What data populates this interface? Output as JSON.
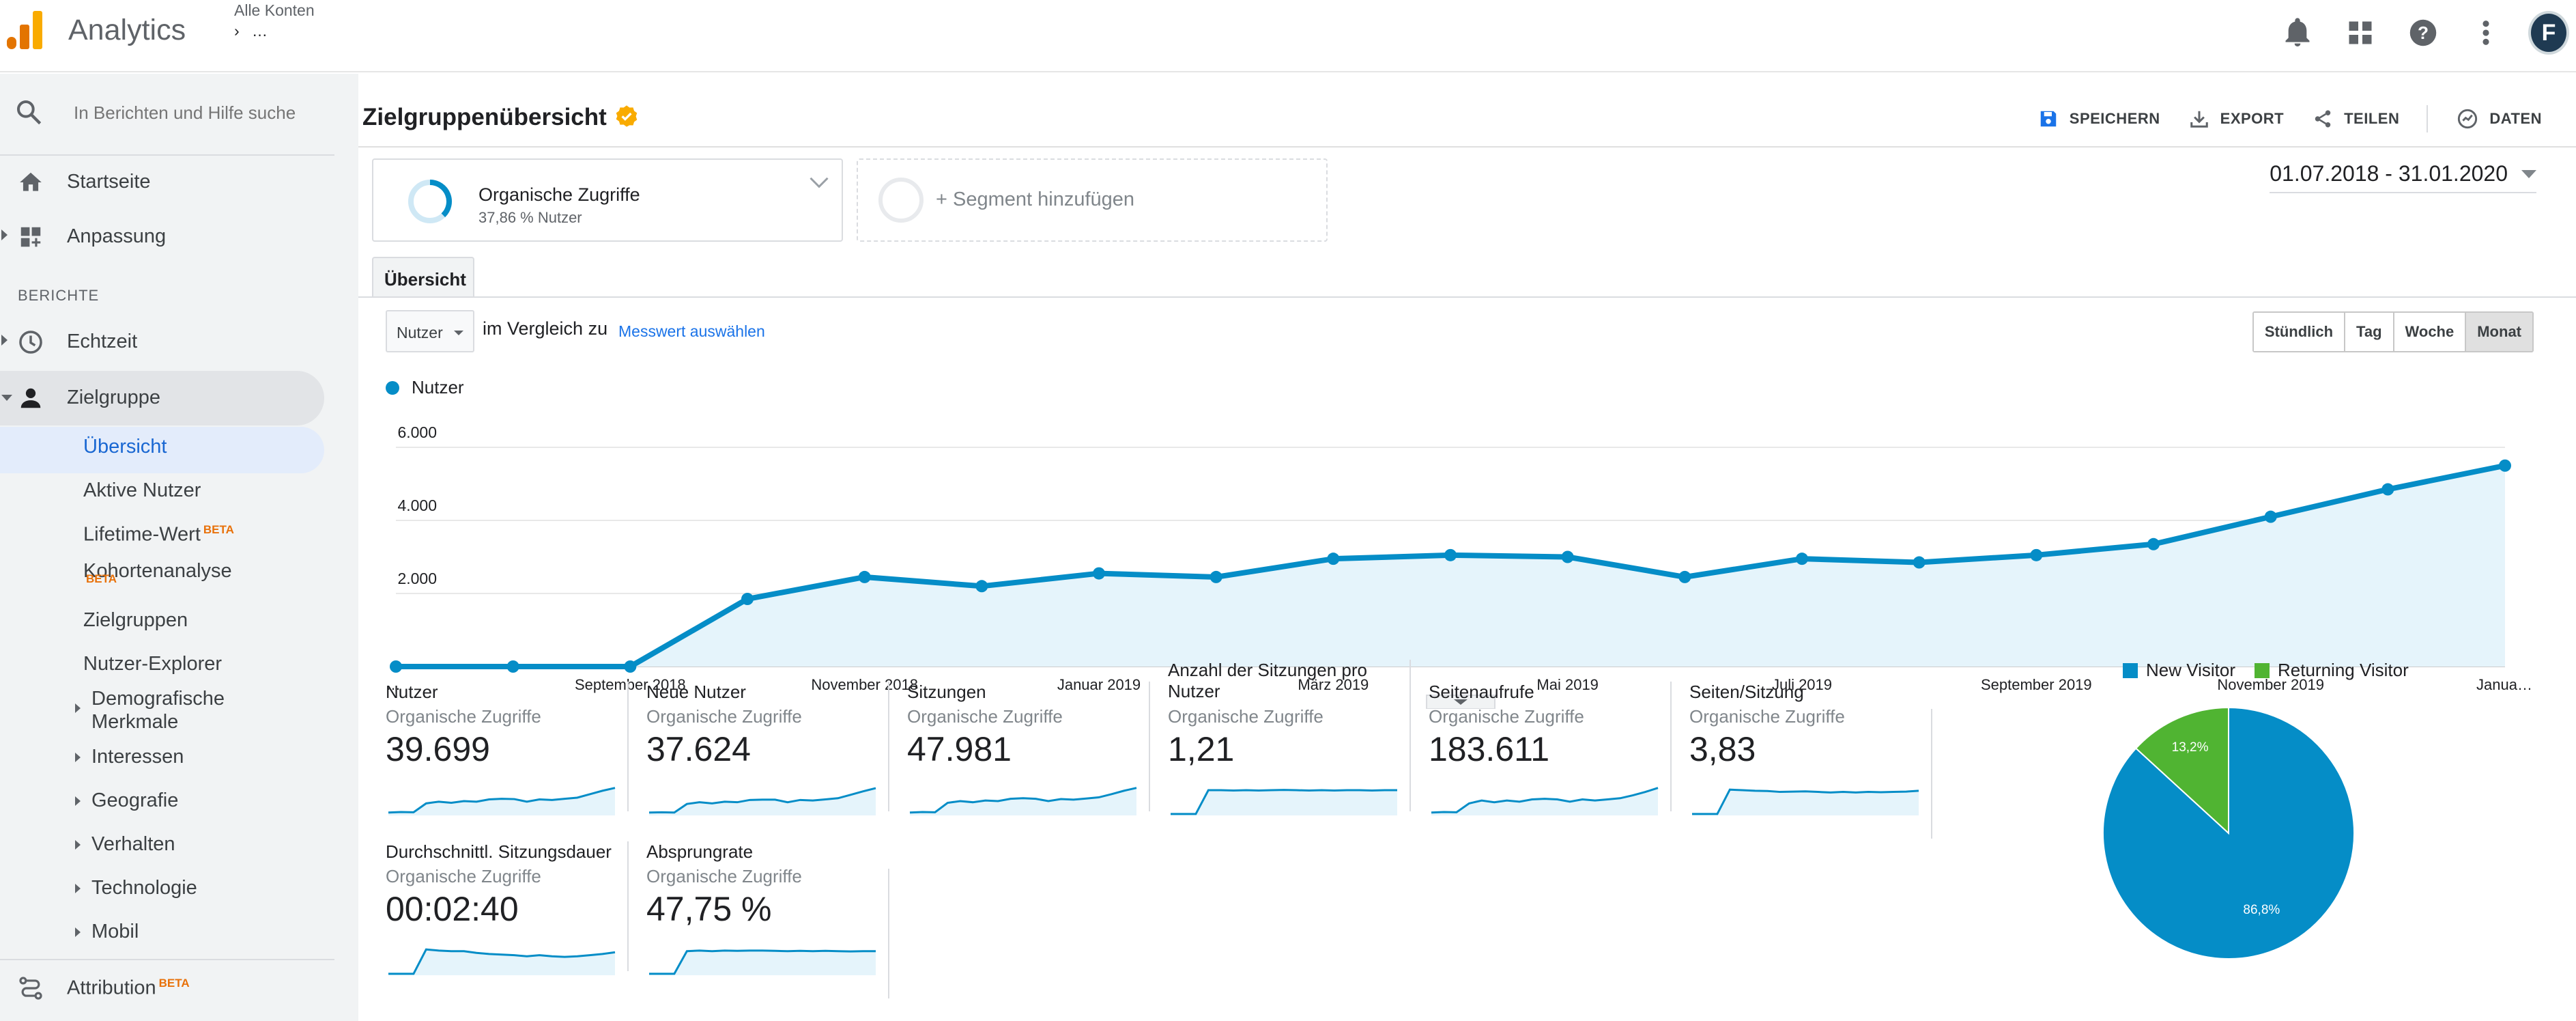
{
  "topbar": {
    "app_title": "Analytics",
    "account_label": "Alle Konten",
    "account_sub": "› …"
  },
  "sidebar": {
    "search_placeholder": "In Berichten und Hilfe suche",
    "items": [
      {
        "label": "Startseite",
        "icon": "home-icon"
      },
      {
        "label": "Anpassung",
        "icon": "dashboard-icon"
      }
    ],
    "section_reports": "BERICHTE",
    "reports": [
      {
        "label": "Echtzeit",
        "icon": "clock-icon"
      },
      {
        "label": "Zielgruppe",
        "icon": "person-icon"
      }
    ],
    "audience_sub": [
      "Übersicht",
      "Aktive Nutzer",
      "Lifetime-Wert",
      "Kohortenanalyse",
      "Zielgruppen",
      "Nutzer-Explorer",
      "Demografische Merkmale",
      "Interessen",
      "Geografie",
      "Verhalten",
      "Technologie",
      "Mobil"
    ],
    "beta_label": "BETA",
    "attribution": "Attribution"
  },
  "header": {
    "title": "Zielgruppenübersicht",
    "actions": [
      "SPEICHERN",
      "EXPORT",
      "TEILEN",
      "DATEN"
    ]
  },
  "segment": {
    "name": "Organische Zugriffe",
    "sub": "37,86 % Nutzer",
    "share": 0.3786,
    "add_label": "+ Segment hinzufügen"
  },
  "date_range": "01.07.2018 - 31.01.2020",
  "tab": "Übersicht",
  "controls": {
    "metric": "Nutzer",
    "compare_text": "im Vergleich zu",
    "compare_link": "Messwert auswählen",
    "granularity": [
      "Stündlich",
      "Tag",
      "Woche",
      "Monat"
    ],
    "active_granularity": "Monat"
  },
  "colors": {
    "line": "#058dc7",
    "area": "#e5f4fb",
    "new_visitor": "#058dc7",
    "returning_visitor": "#50b432",
    "accent_orange": "#f9ab00"
  },
  "chart_data": {
    "type": "line",
    "series": [
      {
        "name": "Nutzer",
        "values": [
          0,
          0,
          0,
          1850,
          2450,
          2200,
          2550,
          2450,
          2950,
          3050,
          3000,
          2450,
          2950,
          2850,
          3050,
          3350,
          4100,
          4850,
          5500
        ]
      }
    ],
    "x": [
      "Juli 2018",
      "August 2018",
      "September 2018",
      "Oktober 2018",
      "November 2018",
      "Dezember 2018",
      "Januar 2019",
      "Februar 2019",
      "März 2019",
      "April 2019",
      "Mai 2019",
      "Juni 2019",
      "Juli 2019",
      "August 2019",
      "September 2019",
      "Oktober 2019",
      "November 2019",
      "Dezember 2019",
      "Januar 2020"
    ],
    "x_tick_labels": [
      "…",
      "September 2018",
      "November 2018",
      "Januar 2019",
      "März 2019",
      "Mai 2019",
      "Juli 2019",
      "September 2019",
      "November 2019",
      "Janua…"
    ],
    "y_ticks": [
      "2.000",
      "4.000",
      "6.000"
    ],
    "ylim": [
      0,
      6000
    ],
    "grid": true,
    "legend": "top-left"
  },
  "scorecards": [
    {
      "title": "Nutzer",
      "segment": "Organische Zugriffe",
      "value": "39.699",
      "spark": [
        0.1,
        0.12,
        0.11,
        0.42,
        0.48,
        0.44,
        0.5,
        0.48,
        0.56,
        0.58,
        0.57,
        0.48,
        0.56,
        0.54,
        0.58,
        0.62,
        0.74,
        0.86,
        0.96
      ]
    },
    {
      "title": "Neue Nutzer",
      "segment": "Organische Zugriffe",
      "value": "37.624",
      "spark": [
        0.1,
        0.11,
        0.1,
        0.4,
        0.46,
        0.42,
        0.48,
        0.46,
        0.54,
        0.55,
        0.55,
        0.46,
        0.54,
        0.52,
        0.56,
        0.6,
        0.72,
        0.84,
        0.95
      ]
    },
    {
      "title": "Sitzungen",
      "segment": "Organische Zugriffe",
      "value": "47.981",
      "spark": [
        0.1,
        0.12,
        0.11,
        0.44,
        0.5,
        0.46,
        0.52,
        0.5,
        0.58,
        0.6,
        0.58,
        0.5,
        0.57,
        0.55,
        0.59,
        0.63,
        0.74,
        0.86,
        0.96
      ]
    },
    {
      "title": "Anzahl der Sitzungen pro Nutzer",
      "segment": "Organische Zugriffe",
      "value": "1,21",
      "spark": [
        0.05,
        0.05,
        0.05,
        0.88,
        0.88,
        0.87,
        0.88,
        0.87,
        0.88,
        0.89,
        0.88,
        0.87,
        0.88,
        0.87,
        0.88,
        0.88,
        0.87,
        0.88,
        0.88
      ]
    },
    {
      "title": "Seitenaufrufe",
      "segment": "Organische Zugriffe",
      "value": "183.611",
      "spark": [
        0.1,
        0.12,
        0.11,
        0.42,
        0.52,
        0.46,
        0.52,
        0.48,
        0.56,
        0.58,
        0.56,
        0.48,
        0.56,
        0.52,
        0.56,
        0.6,
        0.7,
        0.82,
        0.96
      ]
    },
    {
      "title": "Seiten/Sitzung",
      "segment": "Organische Zugriffe",
      "value": "3,83",
      "spark": [
        0.05,
        0.05,
        0.05,
        0.9,
        0.88,
        0.86,
        0.85,
        0.82,
        0.83,
        0.84,
        0.82,
        0.8,
        0.82,
        0.8,
        0.82,
        0.81,
        0.82,
        0.83,
        0.86
      ]
    },
    {
      "title": "Durchschnittl. Sitzungsdauer",
      "segment": "Organische Zugriffe",
      "value": "00:02:40",
      "spark": [
        0.05,
        0.05,
        0.05,
        0.9,
        0.86,
        0.84,
        0.84,
        0.78,
        0.74,
        0.72,
        0.7,
        0.66,
        0.7,
        0.66,
        0.64,
        0.66,
        0.7,
        0.74,
        0.8
      ]
    },
    {
      "title": "Absprungrate",
      "segment": "Organische Zugriffe",
      "value": "47,75 %",
      "spark": [
        0.05,
        0.05,
        0.05,
        0.84,
        0.86,
        0.84,
        0.86,
        0.85,
        0.86,
        0.86,
        0.85,
        0.84,
        0.85,
        0.84,
        0.85,
        0.84,
        0.83,
        0.84,
        0.84
      ]
    }
  ],
  "pie": {
    "legend": [
      "New Visitor",
      "Returning Visitor"
    ],
    "slices": [
      {
        "name": "New Visitor",
        "value": 86.8,
        "label": "86,8%"
      },
      {
        "name": "Returning Visitor",
        "value": 13.2,
        "label": "13,2%"
      }
    ]
  }
}
